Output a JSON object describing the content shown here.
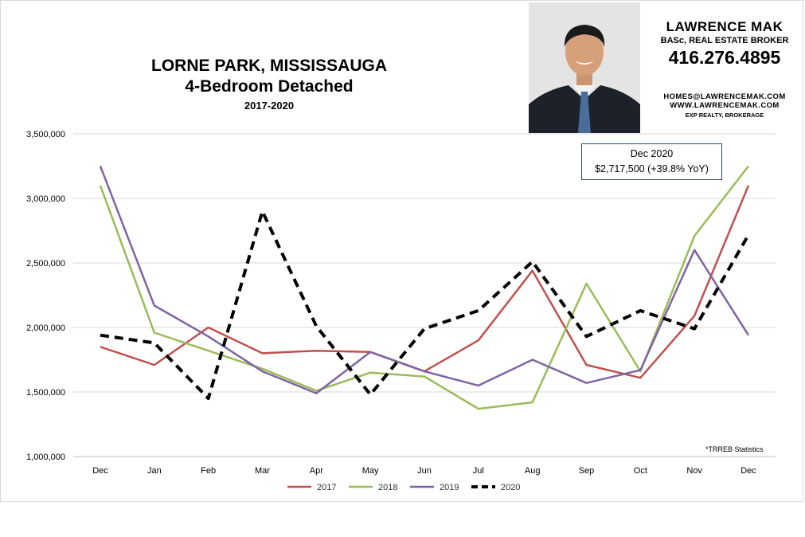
{
  "header": {
    "title": "LORNE PARK, MISSISSAUGA",
    "subtitle": "4-Bedroom Detached",
    "years": "2017-2020"
  },
  "broker": {
    "name": "LAWRENCE MAK",
    "credentials": "BASc, REAL ESTATE BROKER",
    "phone": "416.276.4895",
    "email": "HOMES@LAWRENCEMAK.COM",
    "website": "WWW.LAWRENCEMAK.COM",
    "brokerage": "EXP REALTY, BROKERAGE"
  },
  "callout": {
    "line1": "Dec 2020",
    "line2": "$2,717,500  (+39.8% YoY)"
  },
  "source_note": "*TRREB Statistics",
  "chart_data": {
    "type": "line",
    "categories": [
      "Dec",
      "Jan",
      "Feb",
      "Mar",
      "Apr",
      "May",
      "Jun",
      "Jul",
      "Aug",
      "Sep",
      "Oct",
      "Nov",
      "Dec"
    ],
    "y_ticks": [
      "1,000,000",
      "1,500,000",
      "2,000,000",
      "2,500,000",
      "3,000,000",
      "3,500,000"
    ],
    "ylim": [
      1000000,
      3500000
    ],
    "grid": true,
    "legend_position": "bottom",
    "series": [
      {
        "name": "2017",
        "color": "#c0504d",
        "dashed": false,
        "values": [
          1850000,
          1710000,
          2000000,
          1800000,
          1820000,
          1810000,
          1660000,
          1900000,
          2440000,
          1710000,
          1610000,
          2090000,
          3100000
        ]
      },
      {
        "name": "2018",
        "color": "#9bbb59",
        "dashed": false,
        "values": [
          3100000,
          1960000,
          1820000,
          1680000,
          1510000,
          1650000,
          1620000,
          1370000,
          1420000,
          2340000,
          1660000,
          2710000,
          3250000
        ]
      },
      {
        "name": "2019",
        "color": "#8064a2",
        "dashed": false,
        "values": [
          3250000,
          2170000,
          1930000,
          1660000,
          1490000,
          1810000,
          1660000,
          1550000,
          1750000,
          1570000,
          1670000,
          2600000,
          1940000
        ]
      },
      {
        "name": "2020",
        "color": "#000000",
        "dashed": true,
        "values": [
          1940000,
          1880000,
          1450000,
          2900000,
          2010000,
          1480000,
          1990000,
          2130000,
          2510000,
          1930000,
          2130000,
          1990000,
          2717500
        ]
      }
    ]
  }
}
